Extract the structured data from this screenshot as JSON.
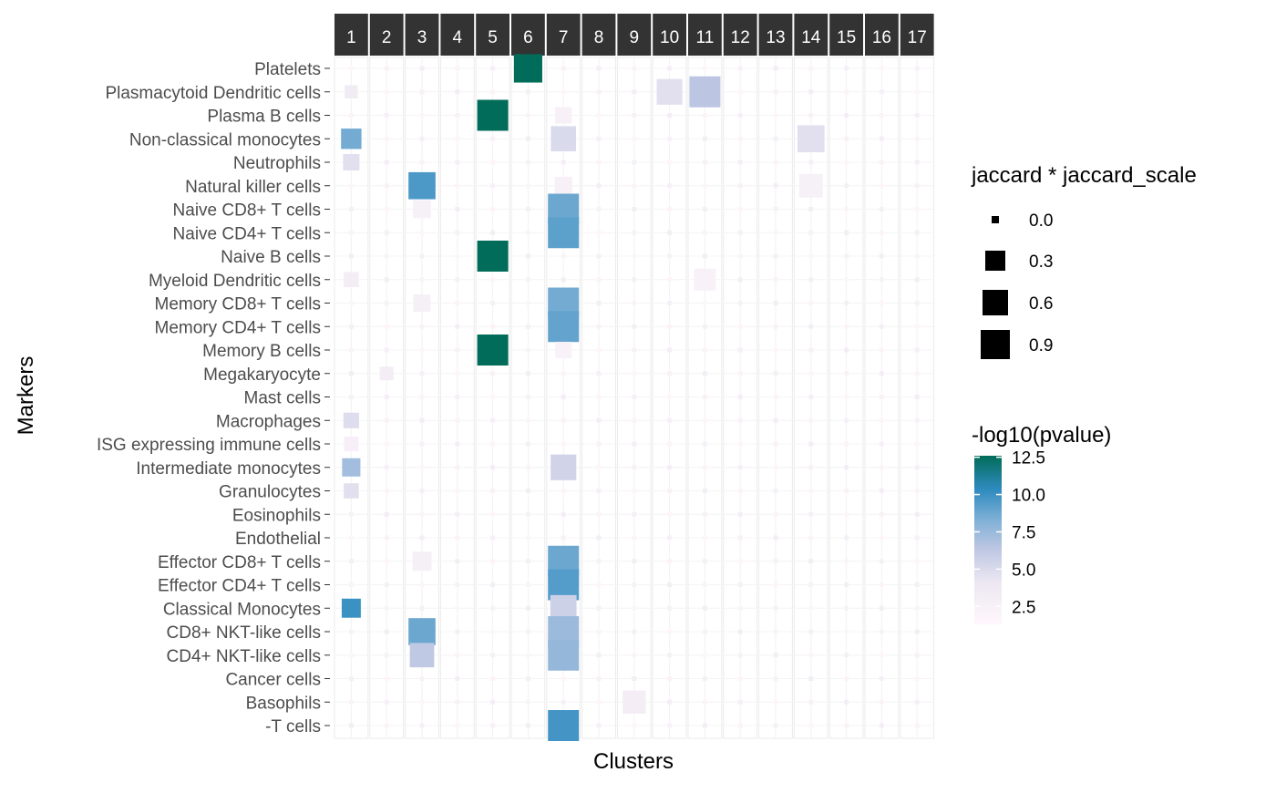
{
  "chart_data": {
    "type": "heatmap",
    "x_label": "Clusters",
    "y_label": "Markers",
    "clusters": [
      "1",
      "2",
      "3",
      "4",
      "5",
      "6",
      "7",
      "8",
      "9",
      "10",
      "11",
      "12",
      "13",
      "14",
      "15",
      "16",
      "17"
    ],
    "markers": [
      "Platelets",
      "Plasmacytoid Dendritic cells",
      "Plasma B cells",
      "Non-classical monocytes",
      "Neutrophils",
      "Natural killer cells",
      "Naive CD8+ T cells",
      "Naive CD4+ T cells",
      "Naive B cells",
      "Myeloid Dendritic cells",
      "Memory CD8+ T cells",
      "Memory CD4+ T cells",
      "Memory B cells",
      "Megakaryocyte",
      "Mast cells",
      "Macrophages",
      "ISG expressing immune cells",
      "Intermediate monocytes",
      "Granulocytes",
      "Eosinophils",
      "Endothelial",
      "Effector CD8+ T cells",
      "Effector CD4+ T cells",
      "Classical Monocytes",
      "CD8+ NKT-like cells",
      "CD4+ NKT-like cells",
      "Cancer cells",
      "Basophils",
      "-T cells"
    ],
    "size_legend": {
      "title": "jaccard * jaccard_scale",
      "labels": [
        "0.0",
        "0.3",
        "0.6",
        "0.9"
      ],
      "values": [
        0.0,
        0.3,
        0.6,
        0.9
      ]
    },
    "color_legend": {
      "title": "-log10(pvalue)",
      "labels": [
        "12.5",
        "10.0",
        "7.5",
        "5.0",
        "2.5"
      ],
      "values": [
        12.5,
        10.0,
        7.5,
        5.0,
        2.5
      ],
      "min": 1.3,
      "max": 12.6
    },
    "points": [
      [
        "Platelets",
        "6",
        0.9,
        12.6
      ],
      [
        "Plasmacytoid Dendritic cells",
        "1",
        0.32,
        3.4
      ],
      [
        "Plasmacytoid Dendritic cells",
        "10",
        0.8,
        4.6
      ],
      [
        "Plasmacytoid Dendritic cells",
        "11",
        1.0,
        6.4
      ],
      [
        "Plasma B cells",
        "5",
        1.0,
        12.6
      ],
      [
        "Plasma B cells",
        "7",
        0.45,
        2.5
      ],
      [
        "Non-classical monocytes",
        "1",
        0.6,
        8.6
      ],
      [
        "Non-classical monocytes",
        "7",
        0.78,
        5.0
      ],
      [
        "Non-classical monocytes",
        "14",
        0.85,
        4.6
      ],
      [
        "Neutrophils",
        "1",
        0.45,
        4.6
      ],
      [
        "Natural killer cells",
        "3",
        0.85,
        9.6
      ],
      [
        "Natural killer cells",
        "7",
        0.5,
        2.5
      ],
      [
        "Natural killer cells",
        "14",
        0.72,
        2.6
      ],
      [
        "Naive CD8+ T cells",
        "3",
        0.5,
        2.6
      ],
      [
        "Naive CD8+ T cells",
        "7",
        1.0,
        8.8
      ],
      [
        "Naive CD4+ T cells",
        "7",
        1.0,
        9.2
      ],
      [
        "Naive B cells",
        "5",
        1.0,
        12.6
      ],
      [
        "Myeloid Dendritic cells",
        "1",
        0.4,
        3.0
      ],
      [
        "Myeloid Dendritic cells",
        "11",
        0.65,
        2.3
      ],
      [
        "Memory CD8+ T cells",
        "3",
        0.48,
        2.8
      ],
      [
        "Memory CD8+ T cells",
        "7",
        1.0,
        8.6
      ],
      [
        "Memory CD4+ T cells",
        "7",
        1.0,
        9.0
      ],
      [
        "Memory B cells",
        "5",
        1.0,
        12.6
      ],
      [
        "Memory B cells",
        "7",
        0.45,
        2.3
      ],
      [
        "Megakaryocyte",
        "2",
        0.35,
        3.0
      ],
      [
        "Macrophages",
        "1",
        0.42,
        4.8
      ],
      [
        "ISG expressing immune cells",
        "1",
        0.38,
        2.7
      ],
      [
        "Intermediate monocytes",
        "1",
        0.52,
        7.2
      ],
      [
        "Intermediate monocytes",
        "7",
        0.8,
        5.4
      ],
      [
        "Granulocytes",
        "1",
        0.4,
        4.6
      ],
      [
        "Effector CD8+ T cells",
        "3",
        0.55,
        2.8
      ],
      [
        "Effector CD8+ T cells",
        "7",
        1.0,
        8.8
      ],
      [
        "Effector CD4+ T cells",
        "7",
        1.0,
        9.4
      ],
      [
        "Classical Monocytes",
        "1",
        0.55,
        10.0
      ],
      [
        "Classical Monocytes",
        "7",
        0.82,
        5.6
      ],
      [
        "CD8+ NKT-like cells",
        "3",
        0.85,
        8.8
      ],
      [
        "CD8+ NKT-like cells",
        "7",
        1.0,
        7.4
      ],
      [
        "CD4+ NKT-like cells",
        "3",
        0.75,
        6.2
      ],
      [
        "CD4+ NKT-like cells",
        "7",
        1.0,
        7.6
      ],
      [
        "Basophils",
        "9",
        0.7,
        3.0
      ],
      [
        "-T cells",
        "7",
        1.0,
        9.8
      ]
    ]
  }
}
